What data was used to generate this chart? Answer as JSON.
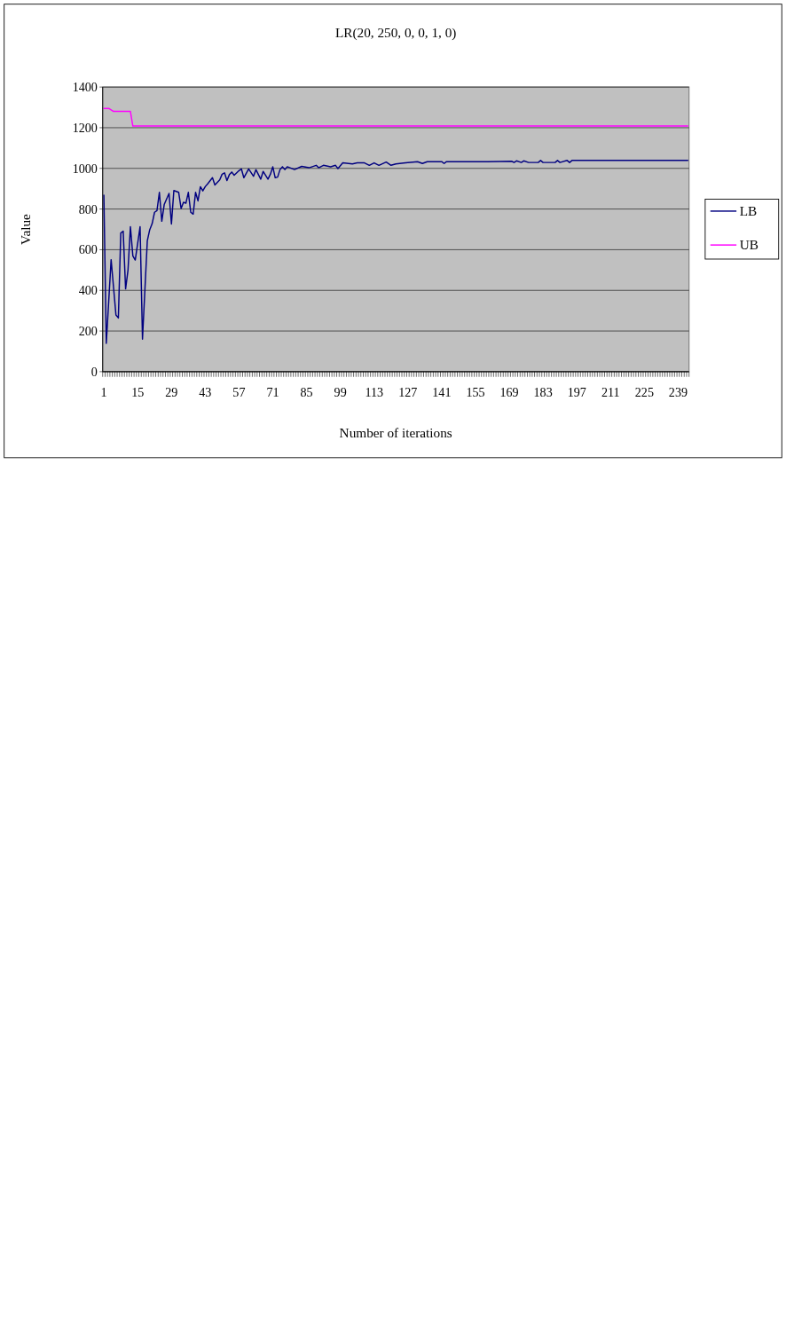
{
  "chart_data": {
    "type": "line",
    "title": "LR(20, 250, 0, 0, 1, 0)",
    "xlabel": "Number of iterations",
    "ylabel": "Value",
    "xlim": [
      0.5,
      243.5
    ],
    "xticks": [
      1,
      15,
      29,
      43,
      57,
      71,
      85,
      99,
      113,
      127,
      141,
      155,
      169,
      183,
      197,
      211,
      225,
      239
    ],
    "ylim": [
      0,
      1400
    ],
    "yticks": [
      0,
      200,
      400,
      600,
      800,
      1000,
      1200,
      1400
    ],
    "grid": "y",
    "legend": "right",
    "series": [
      {
        "name": "LB",
        "color": "#000080",
        "x": [
          1,
          2,
          4,
          6,
          7,
          8,
          9,
          10,
          11,
          12,
          13,
          14,
          16,
          17,
          19,
          20,
          21,
          22,
          23,
          24,
          25,
          26,
          28,
          29,
          30,
          32,
          33,
          34,
          35,
          36,
          37,
          38,
          39,
          40,
          41,
          42,
          43,
          44,
          46,
          47,
          49,
          50,
          51,
          52,
          53,
          54,
          55,
          57,
          58,
          59,
          61,
          63,
          64,
          66,
          67,
          69,
          70,
          71,
          72,
          73,
          74,
          75,
          76,
          77,
          80,
          83,
          86,
          89,
          90,
          92,
          95,
          97,
          98,
          100,
          104,
          106,
          109,
          111,
          113,
          115,
          118,
          120,
          122,
          126,
          131,
          133,
          135,
          141,
          142,
          143,
          160,
          170,
          171,
          172,
          174,
          175,
          177,
          181,
          182,
          183,
          188,
          189,
          190,
          193,
          194,
          195,
          243
        ],
        "values": [
          868,
          139,
          551,
          279,
          264,
          682,
          691,
          407,
          500,
          713,
          570,
          549,
          713,
          160,
          644,
          698,
          728,
          784,
          792,
          882,
          740,
          822,
          877,
          726,
          891,
          882,
          803,
          833,
          829,
          882,
          784,
          775,
          882,
          840,
          910,
          889,
          910,
          924,
          954,
          918,
          943,
          971,
          978,
          940,
          969,
          982,
          966,
          989,
          997,
          954,
          997,
          961,
          994,
          947,
          985,
          947,
          971,
          1008,
          954,
          957,
          994,
          1008,
          994,
          1008,
          994,
          1010,
          1003,
          1015,
          1003,
          1015,
          1008,
          1015,
          999,
          1027,
          1022,
          1027,
          1027,
          1015,
          1027,
          1015,
          1031,
          1015,
          1022,
          1027,
          1033,
          1024,
          1033,
          1033,
          1024,
          1033,
          1033,
          1035,
          1029,
          1037,
          1029,
          1037,
          1029,
          1029,
          1039,
          1029,
          1029,
          1039,
          1029,
          1039,
          1029,
          1039,
          1039
        ]
      },
      {
        "name": "UB",
        "color": "#ff00ff",
        "x": [
          1,
          3,
          5,
          12,
          13,
          243
        ],
        "values": [
          1295,
          1295,
          1280,
          1280,
          1208,
          1208
        ]
      }
    ]
  }
}
